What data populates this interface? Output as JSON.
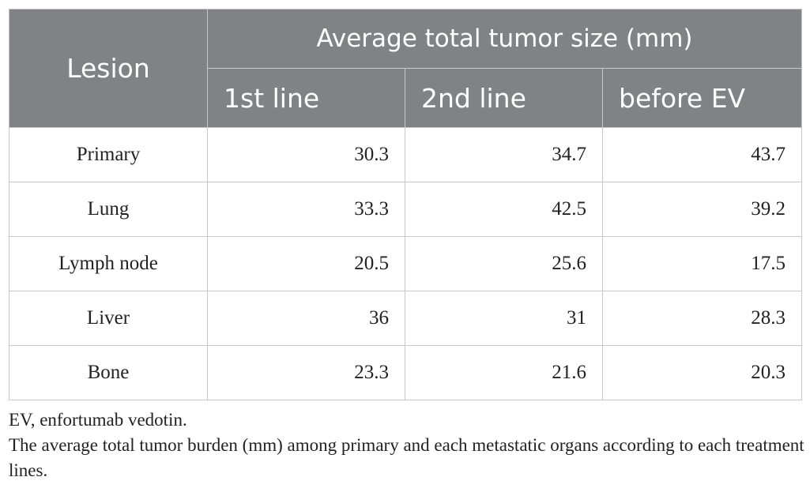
{
  "table": {
    "header": {
      "lesion": "Lesion",
      "group": "Average total tumor size (mm)",
      "columns": [
        "1st line",
        "2nd line",
        "before EV"
      ]
    },
    "rows": [
      {
        "lesion": "Primary",
        "values": [
          "30.3",
          "34.7",
          "43.7"
        ]
      },
      {
        "lesion": "Lung",
        "values": [
          "33.3",
          "42.5",
          "39.2"
        ]
      },
      {
        "lesion": "Lymph node",
        "values": [
          "20.5",
          "25.6",
          "17.5"
        ]
      },
      {
        "lesion": "Liver",
        "values": [
          "36",
          "31",
          "28.3"
        ]
      },
      {
        "lesion": "Bone",
        "values": [
          "23.3",
          "21.6",
          "20.3"
        ]
      }
    ]
  },
  "footnotes": {
    "abbreviation": "EV, enfortumab vedotin.",
    "caption": "The average total tumor burden (mm) among primary and each metastatic organs according to each treatment lines."
  },
  "colors": {
    "header_bg": "#808285",
    "header_text": "#ffffff",
    "border": "#c7c8ca"
  }
}
